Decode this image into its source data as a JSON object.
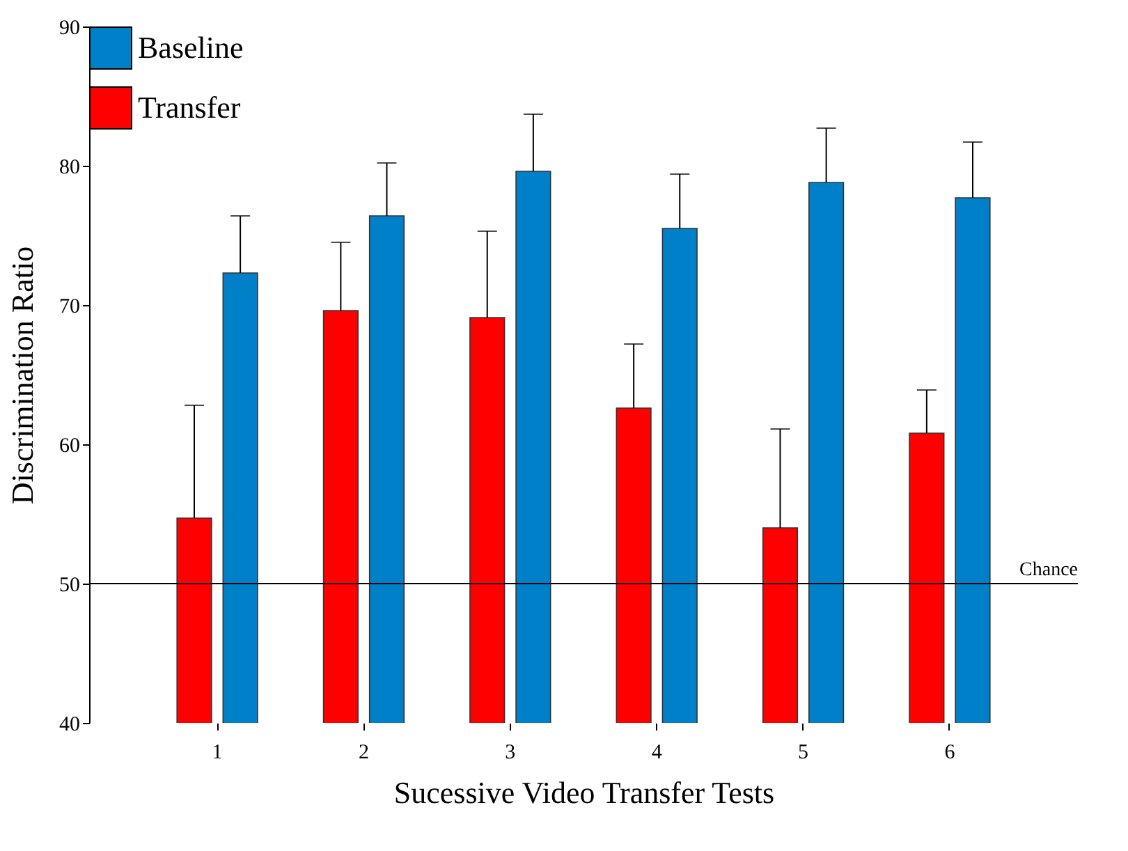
{
  "chart_data": {
    "type": "bar",
    "xlabel": "Sucessive Video Transfer Tests",
    "ylabel": "Discrimination Ratio",
    "categories": [
      "1",
      "2",
      "3",
      "4",
      "5",
      "6"
    ],
    "series": [
      {
        "name": "Transfer",
        "color": "#ff0000",
        "values": [
          54.7,
          69.6,
          69.1,
          62.6,
          54.0,
          60.8
        ],
        "errors": [
          [
            54.7,
            62.8
          ],
          [
            69.6,
            74.5
          ],
          [
            69.1,
            75.3
          ],
          [
            62.6,
            67.2
          ],
          [
            54.0,
            61.1
          ],
          [
            60.8,
            63.9
          ]
        ]
      },
      {
        "name": "Baseline",
        "color": "#0080c8",
        "values": [
          72.3,
          76.4,
          79.6,
          75.5,
          78.8,
          77.7
        ],
        "errors": [
          [
            72.3,
            76.4
          ],
          [
            76.4,
            80.2
          ],
          [
            79.6,
            83.7
          ],
          [
            75.5,
            79.4
          ],
          [
            78.8,
            82.7
          ],
          [
            77.7,
            81.7
          ]
        ]
      }
    ],
    "ylim": [
      40,
      90
    ],
    "yticks": [
      40,
      50,
      60,
      70,
      80,
      90
    ],
    "grid": false,
    "legend": "top left",
    "ref_lines": [
      {
        "axis": "y",
        "value": 50,
        "label": "Chance"
      }
    ]
  }
}
